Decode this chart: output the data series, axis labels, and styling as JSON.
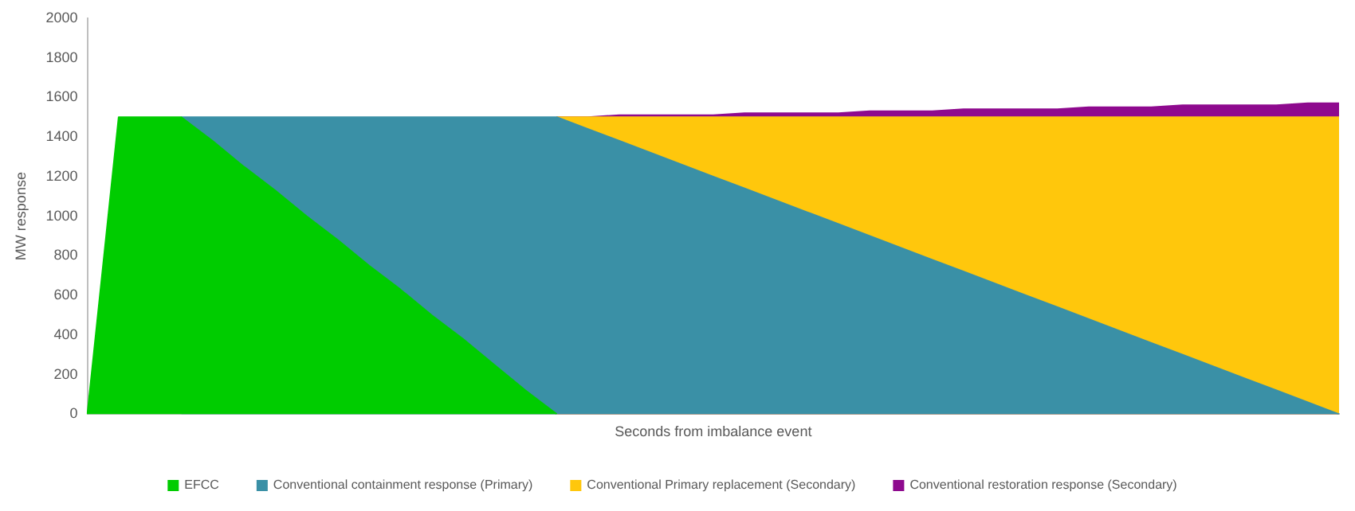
{
  "chart_data": {
    "type": "area",
    "stacked": true,
    "xlabel": "Seconds from imbalance event",
    "ylabel": "MW response",
    "categories": [
      null,
      null,
      null,
      null,
      null,
      null,
      null,
      null,
      null,
      null,
      null,
      null,
      null,
      null,
      null,
      null,
      null,
      null,
      null,
      null,
      null,
      null,
      null,
      null,
      null,
      null,
      null,
      null,
      null,
      null,
      null,
      null,
      null,
      null,
      null,
      null,
      null,
      null,
      null,
      null,
      null
    ],
    "series": [
      {
        "name": "EFCC",
        "color": "#00cc00",
        "values": [
          0,
          1500,
          1500,
          1500,
          1380,
          1250,
          1130,
          1000,
          880,
          750,
          630,
          500,
          380,
          250,
          120,
          0,
          null,
          null,
          null,
          null,
          null,
          null,
          null,
          null,
          null,
          null,
          null,
          null,
          null,
          null,
          null,
          null,
          null,
          null,
          null,
          null,
          null,
          null,
          null,
          null,
          null
        ]
      },
      {
        "name": "Conventional containment response (Primary)",
        "color": "#3a90a6",
        "values": [
          null,
          null,
          null,
          0,
          120,
          250,
          370,
          500,
          620,
          750,
          870,
          1000,
          1120,
          1250,
          1380,
          1500,
          1440,
          1380,
          1320,
          1260,
          1200,
          1140,
          1080,
          1020,
          960,
          900,
          840,
          780,
          720,
          660,
          600,
          540,
          480,
          420,
          360,
          300,
          240,
          180,
          120,
          60,
          0
        ]
      },
      {
        "name": "Conventional Primary replacement (Secondary)",
        "color": "#ffc70c",
        "values": [
          null,
          null,
          null,
          null,
          null,
          null,
          null,
          null,
          null,
          null,
          null,
          null,
          null,
          null,
          null,
          0,
          60,
          120,
          180,
          240,
          300,
          360,
          420,
          480,
          540,
          600,
          660,
          720,
          780,
          840,
          900,
          960,
          1020,
          1080,
          1140,
          1200,
          1260,
          1320,
          1380,
          1440,
          1500
        ]
      },
      {
        "name": "Conventional restoration response (Secondary)",
        "color": "#8e0a8e",
        "values": [
          null,
          null,
          null,
          null,
          null,
          null,
          null,
          null,
          null,
          null,
          null,
          null,
          null,
          null,
          null,
          0,
          0,
          10,
          10,
          10,
          10,
          20,
          20,
          20,
          20,
          30,
          30,
          30,
          40,
          40,
          40,
          40,
          50,
          50,
          50,
          60,
          60,
          60,
          60,
          70,
          70
        ]
      }
    ],
    "ylim": [
      0,
      2000
    ],
    "yticks": [
      0,
      200,
      400,
      600,
      800,
      1000,
      1200,
      1400,
      1600,
      1800,
      2000
    ],
    "tick_labels": "y",
    "grid": false,
    "legend": "bottom"
  }
}
